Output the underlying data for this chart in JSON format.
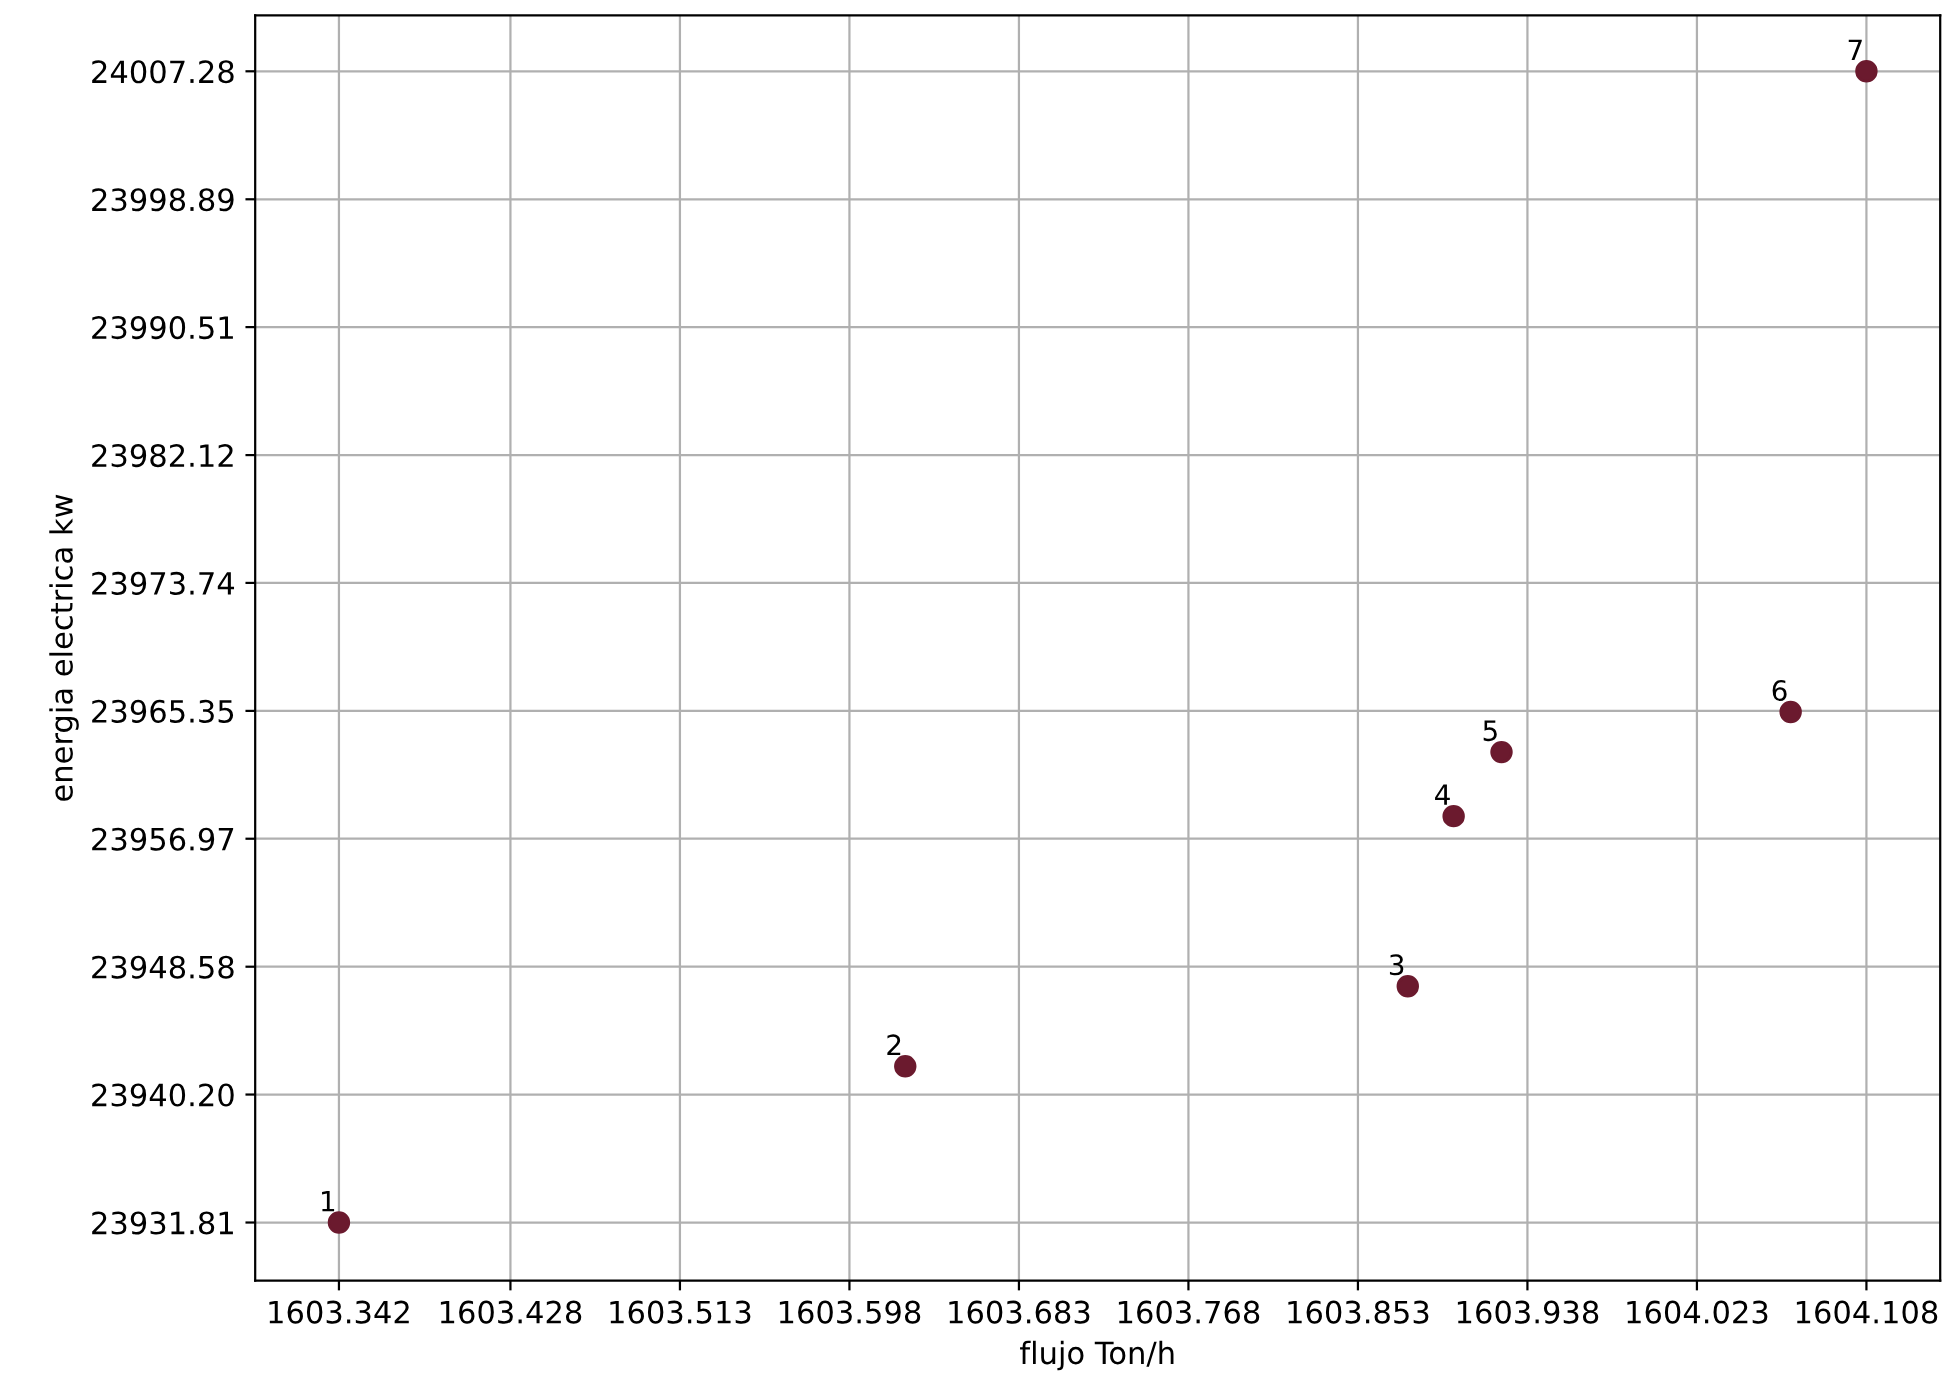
{
  "chart_data": {
    "type": "scatter",
    "xlabel": "flujo Ton/h",
    "ylabel": "energia electrica kw",
    "x": [
      1603.342,
      1603.626,
      1603.878,
      1603.901,
      1603.925,
      1604.07,
      1604.108
    ],
    "values": [
      23931.81,
      23942.05,
      23947.3,
      23958.45,
      23962.65,
      23965.28,
      24007.28
    ],
    "color": "#6b1a2e",
    "marker": "circle",
    "grid": true,
    "xlim": [
      1603.3,
      1604.145
    ],
    "ylim": [
      23928.0,
      24010.95
    ],
    "xticks": [
      1603.342,
      1603.428,
      1603.513,
      1603.598,
      1603.683,
      1603.768,
      1603.853,
      1603.938,
      1604.023,
      1604.108
    ],
    "yticks": [
      23931.81,
      {
        "value": 23940.2,
        "label": "23940.20"
      },
      23948.58,
      23956.97,
      23965.35,
      23973.74,
      23982.12,
      23990.51,
      23998.89,
      24007.28
    ],
    "annotations": [
      {
        "text": "1",
        "x": 1603.342,
        "y": 23931.81
      },
      {
        "text": "2",
        "x": 1603.626,
        "y": 23942.05
      },
      {
        "text": "3",
        "x": 1603.878,
        "y": 23947.3
      },
      {
        "text": "4",
        "x": 1603.901,
        "y": 23958.45
      },
      {
        "text": "5",
        "x": 1603.925,
        "y": 23962.65
      },
      {
        "text": "6",
        "x": 1604.07,
        "y": 23965.28
      },
      {
        "text": "7",
        "x": 1604.108,
        "y": 24007.28
      }
    ]
  }
}
